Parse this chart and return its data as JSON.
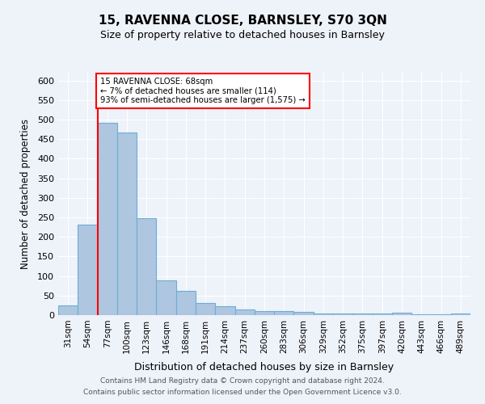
{
  "title": "15, RAVENNA CLOSE, BARNSLEY, S70 3QN",
  "subtitle": "Size of property relative to detached houses in Barnsley",
  "xlabel": "Distribution of detached houses by size in Barnsley",
  "ylabel": "Number of detached properties",
  "categories": [
    "31sqm",
    "54sqm",
    "77sqm",
    "100sqm",
    "123sqm",
    "146sqm",
    "168sqm",
    "191sqm",
    "214sqm",
    "237sqm",
    "260sqm",
    "283sqm",
    "306sqm",
    "329sqm",
    "352sqm",
    "375sqm",
    "397sqm",
    "420sqm",
    "443sqm",
    "466sqm",
    "489sqm"
  ],
  "values": [
    25,
    232,
    492,
    468,
    248,
    88,
    62,
    30,
    23,
    14,
    11,
    10,
    8,
    4,
    4,
    4,
    4,
    6,
    2,
    2,
    5
  ],
  "bar_color": "#aec6e0",
  "bar_edge_color": "#6baed6",
  "annotation_line1": "15 RAVENNA CLOSE: 68sqm",
  "annotation_line2": "← 7% of detached houses are smaller (114)",
  "annotation_line3": "93% of semi-detached houses are larger (1,575) →",
  "ylim": [
    0,
    620
  ],
  "yticks": [
    0,
    50,
    100,
    150,
    200,
    250,
    300,
    350,
    400,
    450,
    500,
    550,
    600
  ],
  "footer1": "Contains HM Land Registry data © Crown copyright and database right 2024.",
  "footer2": "Contains public sector information licensed under the Open Government Licence v3.0.",
  "bg_color": "#eef2f9",
  "plot_bg_color": "#eef2f9",
  "grid_color": "#ffffff"
}
